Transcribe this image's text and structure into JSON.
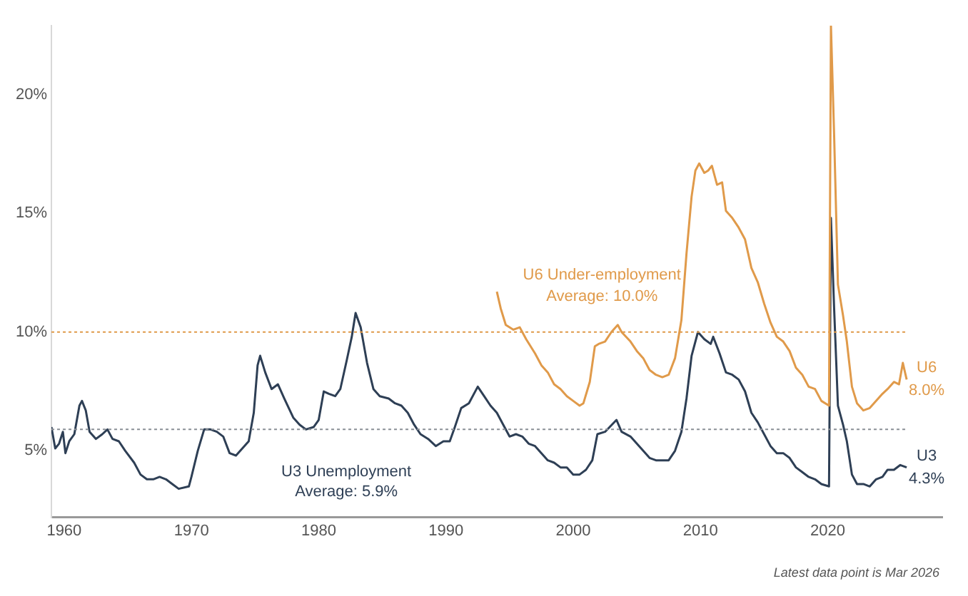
{
  "chart_data": {
    "type": "line",
    "legend": false,
    "grid": false,
    "marker": "none",
    "line_style": "solid",
    "xlim": [
      1959,
      2029
    ],
    "xticks": [
      1960,
      1970,
      1980,
      1990,
      2000,
      2010,
      2020
    ],
    "ylim": [
      2.2,
      22.9
    ],
    "yticks": [
      {
        "value": 5,
        "label": "5%"
      },
      {
        "value": 10,
        "label": "10%"
      },
      {
        "value": 15,
        "label": "15%"
      },
      {
        "value": 20,
        "label": "20%"
      }
    ],
    "series": [
      {
        "name": "U6",
        "color": "#e09a4a",
        "x": [
          1994.0,
          1994.3,
          1994.7,
          1995.3,
          1995.8,
          1996.3,
          1997.0,
          1997.5,
          1998.0,
          1998.5,
          1999.0,
          1999.5,
          2000.0,
          2000.5,
          2000.8,
          2001.3,
          2001.7,
          2002.0,
          2002.5,
          2003.0,
          2003.5,
          2003.8,
          2004.5,
          2005.0,
          2005.5,
          2006.0,
          2006.5,
          2007.0,
          2007.5,
          2008.0,
          2008.5,
          2008.9,
          2009.3,
          2009.6,
          2009.9,
          2010.3,
          2010.6,
          2010.9,
          2011.3,
          2011.7,
          2012.0,
          2012.5,
          2013.0,
          2013.5,
          2014.0,
          2014.5,
          2015.0,
          2015.5,
          2016.0,
          2016.5,
          2017.0,
          2017.5,
          2018.0,
          2018.5,
          2019.0,
          2019.5,
          2020.1,
          2020.25,
          2020.5,
          2020.8,
          2021.2,
          2021.5,
          2021.9,
          2022.3,
          2022.8,
          2023.3,
          2023.8,
          2024.3,
          2024.7,
          2025.2,
          2025.6,
          2025.9,
          2026.2
        ],
        "values": [
          11.7,
          11.0,
          10.3,
          10.1,
          10.2,
          9.7,
          9.1,
          8.6,
          8.3,
          7.8,
          7.6,
          7.3,
          7.1,
          6.9,
          7.0,
          7.9,
          9.4,
          9.5,
          9.6,
          10.0,
          10.3,
          10.0,
          9.6,
          9.2,
          8.9,
          8.4,
          8.2,
          8.1,
          8.2,
          8.9,
          10.5,
          13.3,
          15.7,
          16.8,
          17.1,
          16.7,
          16.8,
          17.0,
          16.2,
          16.3,
          15.1,
          14.8,
          14.4,
          13.9,
          12.7,
          12.1,
          11.2,
          10.4,
          9.8,
          9.6,
          9.2,
          8.5,
          8.2,
          7.7,
          7.6,
          7.1,
          6.9,
          22.9,
          18.3,
          12.0,
          10.7,
          9.6,
          7.7,
          7.0,
          6.7,
          6.8,
          7.1,
          7.4,
          7.6,
          7.9,
          7.8,
          8.7,
          8.0
        ]
      },
      {
        "name": "U3",
        "color": "#2e3f55",
        "x": [
          1959.0,
          1959.3,
          1959.6,
          1959.9,
          1960.1,
          1960.4,
          1960.8,
          1961.2,
          1961.4,
          1961.7,
          1962.0,
          1962.5,
          1963.0,
          1963.4,
          1963.8,
          1964.3,
          1964.8,
          1965.5,
          1966.0,
          1966.5,
          1967.0,
          1967.5,
          1968.0,
          1968.5,
          1969.0,
          1969.8,
          1970.0,
          1970.5,
          1971.0,
          1971.5,
          1972.0,
          1972.5,
          1973.0,
          1973.5,
          1974.0,
          1974.5,
          1974.9,
          1975.2,
          1975.4,
          1975.8,
          1976.3,
          1976.8,
          1977.3,
          1978.0,
          1978.5,
          1979.0,
          1979.6,
          1980.0,
          1980.4,
          1980.8,
          1981.3,
          1981.7,
          1982.2,
          1982.6,
          1982.9,
          1983.3,
          1983.8,
          1984.3,
          1984.8,
          1985.5,
          1986.0,
          1986.5,
          1987.0,
          1987.5,
          1988.0,
          1988.6,
          1989.2,
          1989.8,
          1990.3,
          1990.7,
          1991.2,
          1991.8,
          1992.5,
          1993.0,
          1993.5,
          1994.0,
          1994.5,
          1995.0,
          1995.5,
          1996.0,
          1996.5,
          1997.0,
          1997.5,
          1998.0,
          1998.5,
          1999.0,
          1999.5,
          2000.0,
          2000.5,
          2001.0,
          2001.5,
          2001.9,
          2002.5,
          2003.4,
          2003.8,
          2004.5,
          2005.0,
          2005.5,
          2006.0,
          2006.5,
          2007.0,
          2007.5,
          2008.0,
          2008.5,
          2008.9,
          2009.3,
          2009.8,
          2010.3,
          2010.8,
          2011.0,
          2011.5,
          2012.0,
          2012.5,
          2013.0,
          2013.5,
          2014.0,
          2014.5,
          2015.0,
          2015.5,
          2016.0,
          2016.5,
          2017.0,
          2017.5,
          2018.0,
          2018.5,
          2019.0,
          2019.5,
          2020.1,
          2020.25,
          2020.5,
          2020.8,
          2021.2,
          2021.5,
          2021.9,
          2022.3,
          2022.8,
          2023.3,
          2023.8,
          2024.3,
          2024.7,
          2025.2,
          2025.7,
          2026.2
        ],
        "values": [
          6.0,
          5.1,
          5.3,
          5.8,
          4.9,
          5.4,
          5.7,
          6.9,
          7.1,
          6.7,
          5.8,
          5.5,
          5.7,
          5.9,
          5.5,
          5.4,
          5.0,
          4.5,
          4.0,
          3.8,
          3.8,
          3.9,
          3.8,
          3.6,
          3.4,
          3.5,
          3.9,
          5.0,
          5.9,
          5.9,
          5.8,
          5.6,
          4.9,
          4.8,
          5.1,
          5.4,
          6.6,
          8.6,
          9.0,
          8.3,
          7.6,
          7.8,
          7.2,
          6.4,
          6.1,
          5.9,
          6.0,
          6.3,
          7.5,
          7.4,
          7.3,
          7.6,
          8.8,
          9.8,
          10.8,
          10.2,
          8.7,
          7.6,
          7.3,
          7.2,
          7.0,
          6.9,
          6.6,
          6.1,
          5.7,
          5.5,
          5.2,
          5.4,
          5.4,
          6.0,
          6.8,
          7.0,
          7.7,
          7.3,
          6.9,
          6.6,
          6.1,
          5.6,
          5.7,
          5.6,
          5.3,
          5.2,
          4.9,
          4.6,
          4.5,
          4.3,
          4.3,
          4.0,
          4.0,
          4.2,
          4.6,
          5.7,
          5.8,
          6.3,
          5.8,
          5.6,
          5.3,
          5.0,
          4.7,
          4.6,
          4.6,
          4.6,
          5.0,
          5.8,
          7.2,
          9.0,
          10.0,
          9.7,
          9.5,
          9.8,
          9.1,
          8.3,
          8.2,
          8.0,
          7.5,
          6.6,
          6.2,
          5.7,
          5.2,
          4.9,
          4.9,
          4.7,
          4.3,
          4.1,
          3.9,
          3.8,
          3.6,
          3.5,
          14.8,
          11.0,
          6.9,
          6.1,
          5.4,
          4.0,
          3.6,
          3.6,
          3.5,
          3.8,
          3.9,
          4.2,
          4.2,
          4.4,
          4.3
        ]
      }
    ],
    "ref_lines": [
      {
        "axis": "y",
        "value": 10.0,
        "color": "#e09a4a",
        "line_style": "dotted"
      },
      {
        "axis": "y",
        "value": 5.9,
        "color": "#8a8f96",
        "line_style": "dotted"
      }
    ],
    "annotations": [
      "U6 Under-employment",
      "Average: 10.0%",
      "U3 Unemployment",
      "Average: 5.9%",
      {
        "text": "8.0%",
        "x": 2026.2,
        "y": 8.0
      },
      {
        "text": "4.3%",
        "x": 2026.2,
        "y": 4.3
      },
      "Latest data point is Mar 2026"
    ]
  }
}
